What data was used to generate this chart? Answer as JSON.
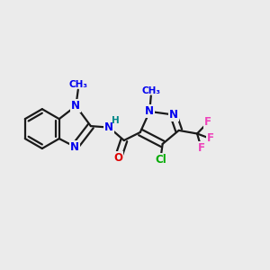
{
  "background_color": "#ebebeb",
  "bond_color": "#1a1a1a",
  "bond_width": 1.6,
  "dbo": 0.012,
  "text_colors": {
    "N": "#0000ee",
    "O": "#dd0000",
    "Cl": "#00aa00",
    "F": "#ee44bb",
    "H": "#008888",
    "C": "#1a1a1a"
  },
  "fs": 8.5,
  "fs_small": 7.5,
  "figsize": [
    3.0,
    3.0
  ],
  "dpi": 100
}
